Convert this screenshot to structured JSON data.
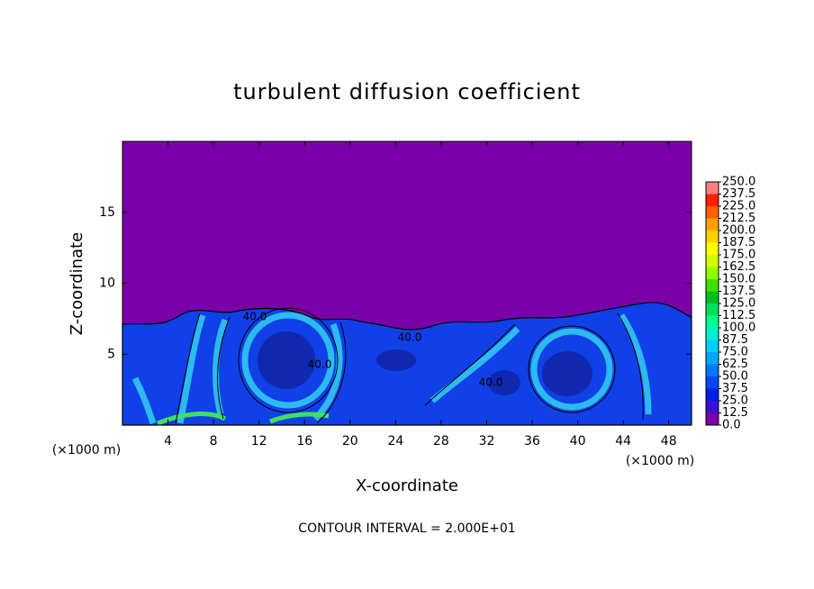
{
  "chart_data": {
    "type": "contour",
    "title": "turbulent diffusion coefficient",
    "xlabel": "X-coordinate",
    "ylabel": "Z-coordinate",
    "y_unit": "(×1000 m)",
    "x_unit": "(×1000 m)",
    "xlim": [
      0,
      50
    ],
    "xticks": [
      4,
      8,
      12,
      16,
      20,
      24,
      28,
      32,
      36,
      40,
      44,
      48
    ],
    "ylim": [
      0,
      20
    ],
    "yticks": [
      5,
      10,
      15
    ],
    "contour_labels": [
      "40.0",
      "40.0",
      "40.0",
      "40.0"
    ],
    "footnote": "CONTOUR INTERVAL = 2.000E+01",
    "colorbar": {
      "levels": [
        {
          "value": 0,
          "label": "0.0"
        },
        {
          "value": 12.5,
          "label": "12.5"
        },
        {
          "value": 25,
          "label": "25.0"
        },
        {
          "value": 37.5,
          "label": "37.5"
        },
        {
          "value": 50,
          "label": "50.0"
        },
        {
          "value": 62.5,
          "label": "62.5"
        },
        {
          "value": 75,
          "label": "75.0"
        },
        {
          "value": 87.5,
          "label": "87.5"
        },
        {
          "value": 100,
          "label": "100.0"
        },
        {
          "value": 112.5,
          "label": "112.5"
        },
        {
          "value": 125,
          "label": "125.0"
        },
        {
          "value": 137.5,
          "label": "137.5"
        },
        {
          "value": 150,
          "label": "150.0"
        },
        {
          "value": 162.5,
          "label": "162.5"
        },
        {
          "value": 175,
          "label": "175.0"
        },
        {
          "value": 187.5,
          "label": "187.5"
        },
        {
          "value": 200,
          "label": "200.0"
        },
        {
          "value": 212.5,
          "label": "212.5"
        },
        {
          "value": 225,
          "label": "225.0"
        },
        {
          "value": 237.5,
          "label": "237.5"
        },
        {
          "value": 250,
          "label": "250.0"
        }
      ],
      "colors": [
        "#7a00a8",
        "#3a10d0",
        "#0020e0",
        "#0048f0",
        "#0078ff",
        "#00a8ff",
        "#00d0f8",
        "#00f0d0",
        "#00ff90",
        "#00e060",
        "#00c020",
        "#40e000",
        "#90ff00",
        "#d0ff00",
        "#ffff00",
        "#ffd000",
        "#ffa000",
        "#ff6000",
        "#ff2000",
        "#ff8080"
      ]
    }
  }
}
